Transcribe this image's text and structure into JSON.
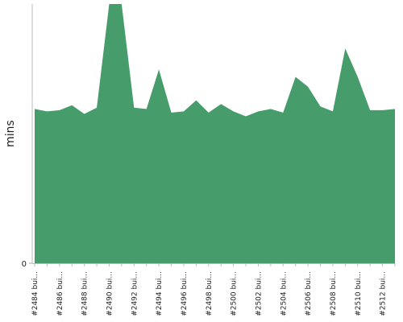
{
  "chart_data": {
    "type": "area",
    "y_label": "mins",
    "categories": [
      "#2484 bui...",
      null,
      "#2486 bui...",
      null,
      "#2488 bui...",
      null,
      "#2490 bui...",
      null,
      "#2492 bui...",
      null,
      "#2494 bui...",
      null,
      "#2496 bui...",
      null,
      "#2498 bui...",
      null,
      "#2500 bui...",
      null,
      "#2502 bui...",
      null,
      "#2504 bui...",
      null,
      "#2506 bui...",
      null,
      "#2508 bui...",
      null,
      "#2510 bui...",
      null,
      "#2512 bui...",
      null
    ],
    "series": [
      {
        "name": "mins",
        "color": "#469d6b",
        "values": [
          12.5,
          12.3,
          12.4,
          12.8,
          12.1,
          12.6,
          21,
          21,
          12.6,
          12.5,
          15.7,
          12.2,
          12.3,
          13.2,
          12.2,
          12.9,
          12.3,
          11.9,
          12.3,
          12.5,
          12.2,
          15.1,
          14.3,
          12.7,
          12.3,
          17.4,
          15.1,
          12.4,
          12.4,
          12.5
        ]
      }
    ],
    "ylim": [
      0,
      21
    ],
    "yticks": [
      0
    ]
  }
}
